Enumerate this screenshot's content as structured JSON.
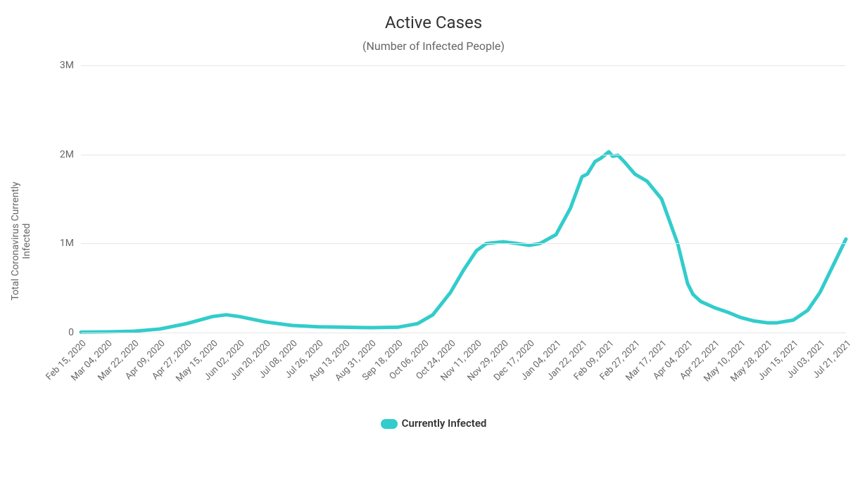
{
  "chart": {
    "type": "line",
    "title": "Active Cases",
    "subtitle": "(Number of Infected People)",
    "y_axis_label": "Total Coronavirus Currently Infected",
    "background_color": "#ffffff",
    "grid_color": "#e6e6e6",
    "axis_text_color": "#666666",
    "title_color": "#333333",
    "title_fontsize": 24,
    "subtitle_fontsize": 16,
    "axis_fontsize": 14,
    "tick_fontsize": 13,
    "line_color": "#33cccc",
    "line_width": 5,
    "ylim": [
      0,
      3000000
    ],
    "y_ticks": [
      {
        "value": 0,
        "label": "0"
      },
      {
        "value": 1000000,
        "label": "1M"
      },
      {
        "value": 2000000,
        "label": "2M"
      },
      {
        "value": 3000000,
        "label": "3M"
      }
    ],
    "x_labels": [
      "Feb 15, 2020",
      "Mar 04, 2020",
      "Mar 22, 2020",
      "Apr 09, 2020",
      "Apr 27, 2020",
      "May 15, 2020",
      "Jun 02, 2020",
      "Jun 20, 2020",
      "Jul 08, 2020",
      "Jul 26, 2020",
      "Aug 13, 2020",
      "Aug 31, 2020",
      "Sep 18, 2020",
      "Oct 06, 2020",
      "Oct 24, 2020",
      "Nov 11, 2020",
      "Nov 29, 2020",
      "Dec 17, 2020",
      "Jan 04, 2021",
      "Jan 22, 2021",
      "Feb 09, 2021",
      "Feb 27, 2021",
      "Mar 17, 2021",
      "Apr 04, 2021",
      "Apr 22, 2021",
      "May 10, 2021",
      "May 28, 2021",
      "Jun 15, 2021",
      "Jul 03, 2021",
      "Jul 21, 2021"
    ],
    "legend_label": "Currently Infected",
    "series": [
      {
        "x": 0.0,
        "y": 5000
      },
      {
        "x": 0.034,
        "y": 8000
      },
      {
        "x": 0.069,
        "y": 15000
      },
      {
        "x": 0.103,
        "y": 40000
      },
      {
        "x": 0.138,
        "y": 100000
      },
      {
        "x": 0.172,
        "y": 180000
      },
      {
        "x": 0.19,
        "y": 200000
      },
      {
        "x": 0.207,
        "y": 180000
      },
      {
        "x": 0.241,
        "y": 120000
      },
      {
        "x": 0.276,
        "y": 80000
      },
      {
        "x": 0.31,
        "y": 65000
      },
      {
        "x": 0.345,
        "y": 60000
      },
      {
        "x": 0.379,
        "y": 55000
      },
      {
        "x": 0.414,
        "y": 60000
      },
      {
        "x": 0.44,
        "y": 100000
      },
      {
        "x": 0.46,
        "y": 200000
      },
      {
        "x": 0.483,
        "y": 450000
      },
      {
        "x": 0.5,
        "y": 700000
      },
      {
        "x": 0.517,
        "y": 920000
      },
      {
        "x": 0.53,
        "y": 1000000
      },
      {
        "x": 0.552,
        "y": 1020000
      },
      {
        "x": 0.57,
        "y": 1000000
      },
      {
        "x": 0.586,
        "y": 980000
      },
      {
        "x": 0.6,
        "y": 1000000
      },
      {
        "x": 0.621,
        "y": 1100000
      },
      {
        "x": 0.64,
        "y": 1400000
      },
      {
        "x": 0.655,
        "y": 1750000
      },
      {
        "x": 0.662,
        "y": 1780000
      },
      {
        "x": 0.672,
        "y": 1920000
      },
      {
        "x": 0.68,
        "y": 1960000
      },
      {
        "x": 0.69,
        "y": 2030000
      },
      {
        "x": 0.695,
        "y": 1980000
      },
      {
        "x": 0.702,
        "y": 1990000
      },
      {
        "x": 0.71,
        "y": 1920000
      },
      {
        "x": 0.724,
        "y": 1780000
      },
      {
        "x": 0.74,
        "y": 1700000
      },
      {
        "x": 0.759,
        "y": 1500000
      },
      {
        "x": 0.78,
        "y": 1000000
      },
      {
        "x": 0.793,
        "y": 550000
      },
      {
        "x": 0.8,
        "y": 430000
      },
      {
        "x": 0.81,
        "y": 350000
      },
      {
        "x": 0.828,
        "y": 280000
      },
      {
        "x": 0.845,
        "y": 230000
      },
      {
        "x": 0.862,
        "y": 170000
      },
      {
        "x": 0.88,
        "y": 130000
      },
      {
        "x": 0.897,
        "y": 110000
      },
      {
        "x": 0.91,
        "y": 110000
      },
      {
        "x": 0.931,
        "y": 140000
      },
      {
        "x": 0.95,
        "y": 250000
      },
      {
        "x": 0.966,
        "y": 450000
      },
      {
        "x": 0.983,
        "y": 750000
      },
      {
        "x": 1.0,
        "y": 1050000
      }
    ]
  }
}
